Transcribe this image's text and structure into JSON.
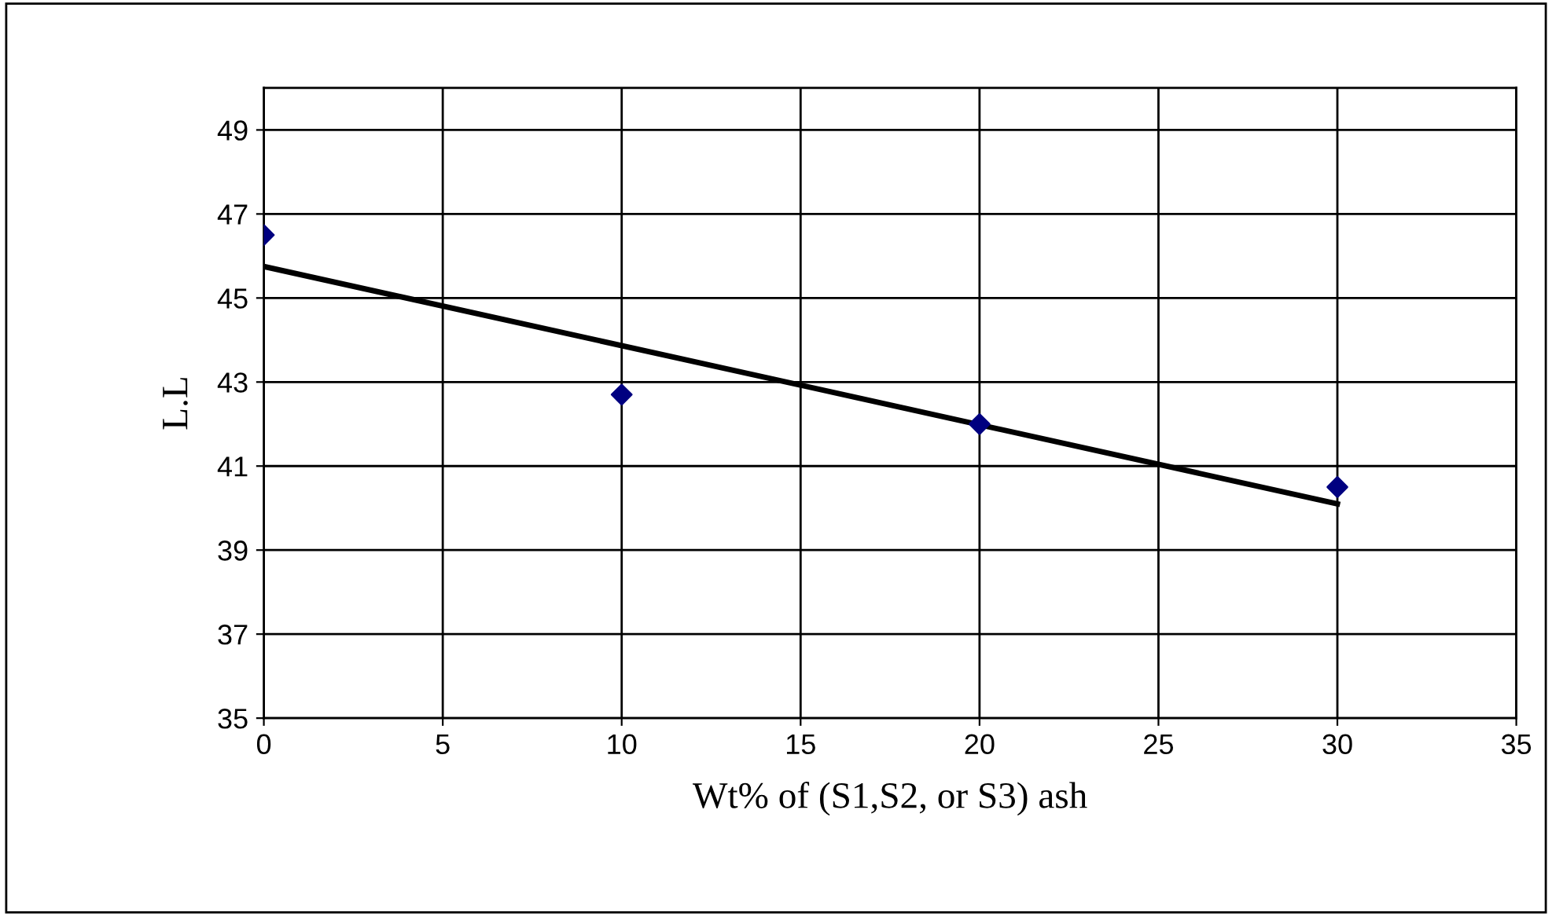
{
  "chart_data": {
    "type": "scatter",
    "xlabel": "Wt% of (S1,S2, or S3) ash",
    "ylabel": "L.L",
    "x": [
      0,
      10,
      20,
      30
    ],
    "series": [
      {
        "color": "#000080",
        "marker": "diamond",
        "values": [
          46.5,
          42.7,
          42.0,
          40.5
        ]
      },
      {
        "type": "line",
        "color": "#000000",
        "marker": "none",
        "line_style": "solid",
        "x": [
          0,
          30
        ],
        "values": [
          45.75,
          40.1
        ]
      }
    ],
    "xlim": [
      0,
      35
    ],
    "xticks": [
      0,
      5,
      10,
      15,
      20,
      25,
      30,
      35
    ],
    "ylim": [
      35,
      50
    ],
    "yticks": [
      35,
      37,
      39,
      41,
      43,
      45,
      47,
      49
    ],
    "grid": true
  }
}
